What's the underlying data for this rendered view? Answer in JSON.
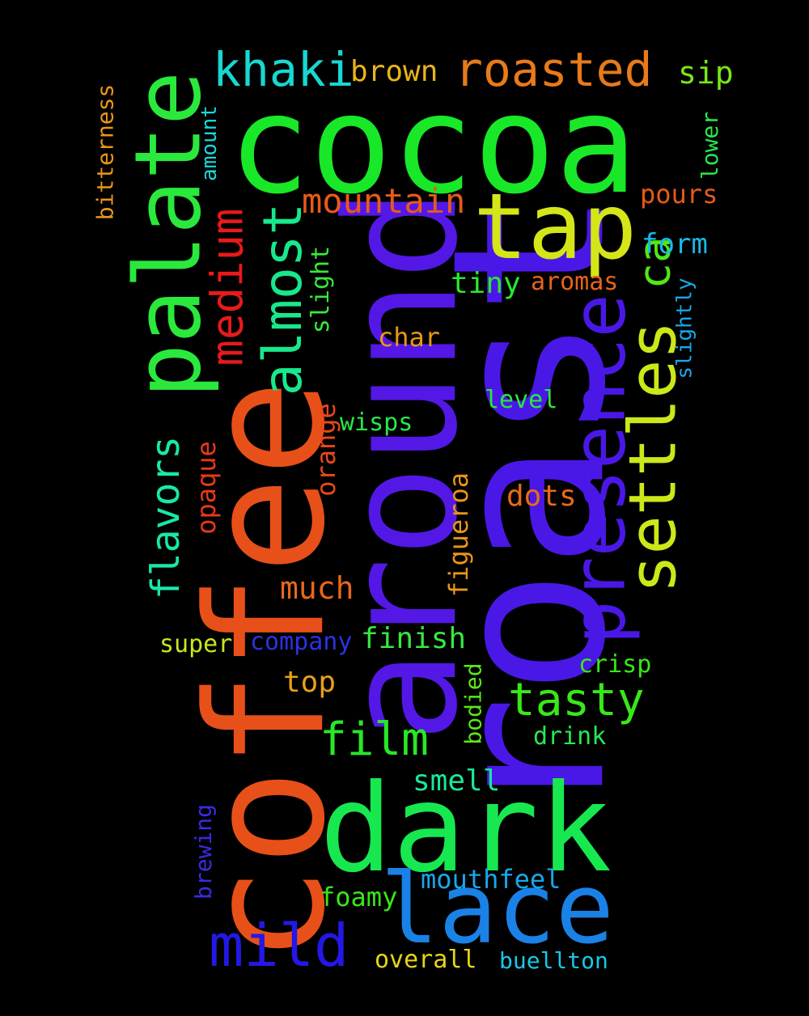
{
  "words": [
    {
      "text": "cocoa",
      "color": "#18E828",
      "vertical": false
    },
    {
      "text": "roast",
      "color": "#4A18E6",
      "vertical": true
    },
    {
      "text": "coffee",
      "color": "#E8501A",
      "vertical": true
    },
    {
      "text": "around",
      "color": "#5418E6",
      "vertical": true
    },
    {
      "text": "dark",
      "color": "#18E850",
      "vertical": false
    },
    {
      "text": "tap",
      "color": "#D4E618",
      "vertical": false
    },
    {
      "text": "palate",
      "color": "#2AE83C",
      "vertical": true
    },
    {
      "text": "lace",
      "color": "#1A82E6",
      "vertical": false
    },
    {
      "text": "presence",
      "color": "#4A18E6",
      "vertical": true
    },
    {
      "text": "settles",
      "color": "#CCE818",
      "vertical": true
    },
    {
      "text": "mild",
      "color": "#2418E6",
      "vertical": false
    },
    {
      "text": "almost",
      "color": "#18E88C",
      "vertical": true
    },
    {
      "text": "khaki",
      "color": "#18D8D0",
      "vertical": false
    },
    {
      "text": "roasted",
      "color": "#E87A1A",
      "vertical": false
    },
    {
      "text": "medium",
      "color": "#E81A1A",
      "vertical": true
    },
    {
      "text": "tasty",
      "color": "#38E818",
      "vertical": false
    },
    {
      "text": "film",
      "color": "#28E828",
      "vertical": false
    },
    {
      "text": "flavors",
      "color": "#18E8A8",
      "vertical": true
    },
    {
      "text": "mountain",
      "color": "#E85A1A",
      "vertical": false
    },
    {
      "text": "ca",
      "color": "#50E818",
      "vertical": true
    },
    {
      "text": "brown",
      "color": "#E8B418",
      "vertical": false
    },
    {
      "text": "sip",
      "color": "#78E818",
      "vertical": false
    },
    {
      "text": "pours",
      "color": "#E85A1A",
      "vertical": false
    },
    {
      "text": "form",
      "color": "#18B8E8",
      "vertical": false
    },
    {
      "text": "tiny",
      "color": "#28E830",
      "vertical": false
    },
    {
      "text": "aromas",
      "color": "#E8641A",
      "vertical": false
    },
    {
      "text": "much",
      "color": "#E8681A",
      "vertical": false
    },
    {
      "text": "finish",
      "color": "#38E840",
      "vertical": false
    },
    {
      "text": "top",
      "color": "#E8A018",
      "vertical": false
    },
    {
      "text": "smell",
      "color": "#18E898",
      "vertical": false
    },
    {
      "text": "dots",
      "color": "#E86A1A",
      "vertical": false
    },
    {
      "text": "crisp",
      "color": "#38E818",
      "vertical": false
    },
    {
      "text": "mouthfeel",
      "color": "#18A8E8",
      "vertical": false
    },
    {
      "text": "foamy",
      "color": "#38E818",
      "vertical": false
    },
    {
      "text": "overall",
      "color": "#E8D418",
      "vertical": false
    },
    {
      "text": "buellton",
      "color": "#18C8E8",
      "vertical": false
    },
    {
      "text": "company",
      "color": "#2A32E6",
      "vertical": false
    },
    {
      "text": "super",
      "color": "#C8E818",
      "vertical": false
    },
    {
      "text": "wisps",
      "color": "#28E848",
      "vertical": false
    },
    {
      "text": "char",
      "color": "#E8961A",
      "vertical": false
    },
    {
      "text": "level",
      "color": "#28E840",
      "vertical": false
    },
    {
      "text": "drink",
      "color": "#28E850",
      "vertical": false
    },
    {
      "text": "opaque",
      "color": "#E8381A",
      "vertical": true
    },
    {
      "text": "orange",
      "color": "#E8481A",
      "vertical": true
    },
    {
      "text": "figueroa",
      "color": "#E8961A",
      "vertical": true
    },
    {
      "text": "slight",
      "color": "#38E838",
      "vertical": true
    },
    {
      "text": "bodied",
      "color": "#58E818",
      "vertical": true
    },
    {
      "text": "bitterness",
      "color": "#E8961A",
      "vertical": true
    },
    {
      "text": "amount",
      "color": "#18D8D8",
      "vertical": true
    },
    {
      "text": "lower",
      "color": "#28E848",
      "vertical": true
    },
    {
      "text": "slightly",
      "color": "#18A8E8",
      "vertical": true
    },
    {
      "text": "brewing",
      "color": "#3A2AE6",
      "vertical": true
    }
  ]
}
